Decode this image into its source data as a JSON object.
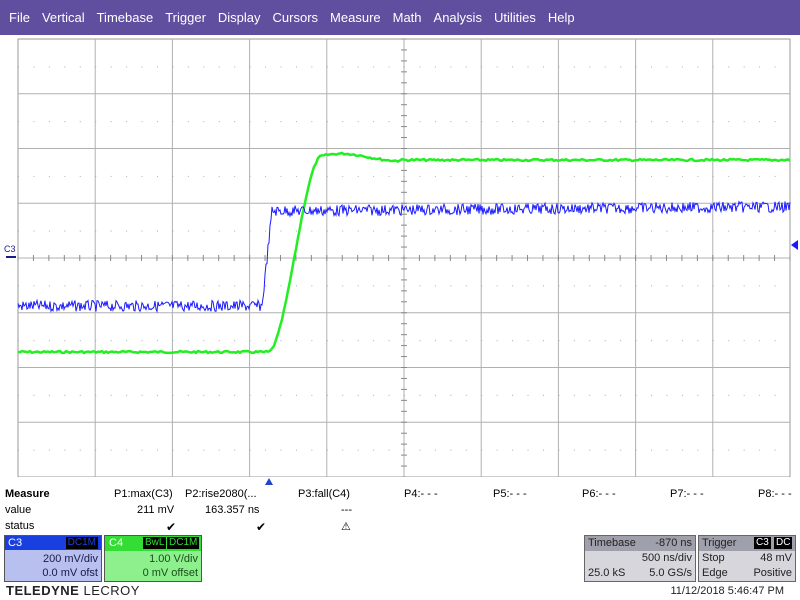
{
  "menu": [
    "File",
    "Vertical",
    "Timebase",
    "Trigger",
    "Display",
    "Cursors",
    "Measure",
    "Math",
    "Analysis",
    "Utilities",
    "Help"
  ],
  "grid": {
    "channel_label": "C3",
    "colors": {
      "c3": "#1a1aff",
      "c4": "#22ee22",
      "grid": "#b0b0b0",
      "border": "#999999"
    }
  },
  "measure": {
    "header": "Measure",
    "row_labels": {
      "value": "value",
      "status": "status"
    },
    "params": [
      {
        "name": "P1:max(C3)",
        "value": "211 mV",
        "status": "check"
      },
      {
        "name": "P2:rise2080(...",
        "value": "163.357 ns",
        "status": "check"
      },
      {
        "name": "P3:fall(C4)",
        "value": "---",
        "status": "warning"
      },
      {
        "name": "P4:- - -",
        "value": "",
        "status": ""
      },
      {
        "name": "P5:- - -",
        "value": "",
        "status": ""
      },
      {
        "name": "P6:- - -",
        "value": "",
        "status": ""
      },
      {
        "name": "P7:- - -",
        "value": "",
        "status": ""
      },
      {
        "name": "P8:- - -",
        "value": "",
        "status": ""
      }
    ]
  },
  "ch3": {
    "label": "C3",
    "coupling": "DC1M",
    "vdiv": "200 mV/div",
    "offset": "0.0 mV ofst"
  },
  "ch4": {
    "label": "C4",
    "bwl": "BwL",
    "coupling": "DC1M",
    "vdiv": "1.00 V/div",
    "offset": "0 mV offset"
  },
  "timebase": {
    "label": "Timebase",
    "delay": "-870 ns",
    "hdiv": "500 ns/div",
    "samples": "25.0 kS",
    "rate": "5.0 GS/s"
  },
  "trigger": {
    "label": "Trigger",
    "source": "C3",
    "coupling": "DC",
    "mode": "Stop",
    "level": "48 mV",
    "type": "Edge",
    "slope": "Positive"
  },
  "brand": {
    "name": "TELEDYNE",
    "sub": "LECROY"
  },
  "datetime": "11/12/2018 5:46:47 PM"
}
